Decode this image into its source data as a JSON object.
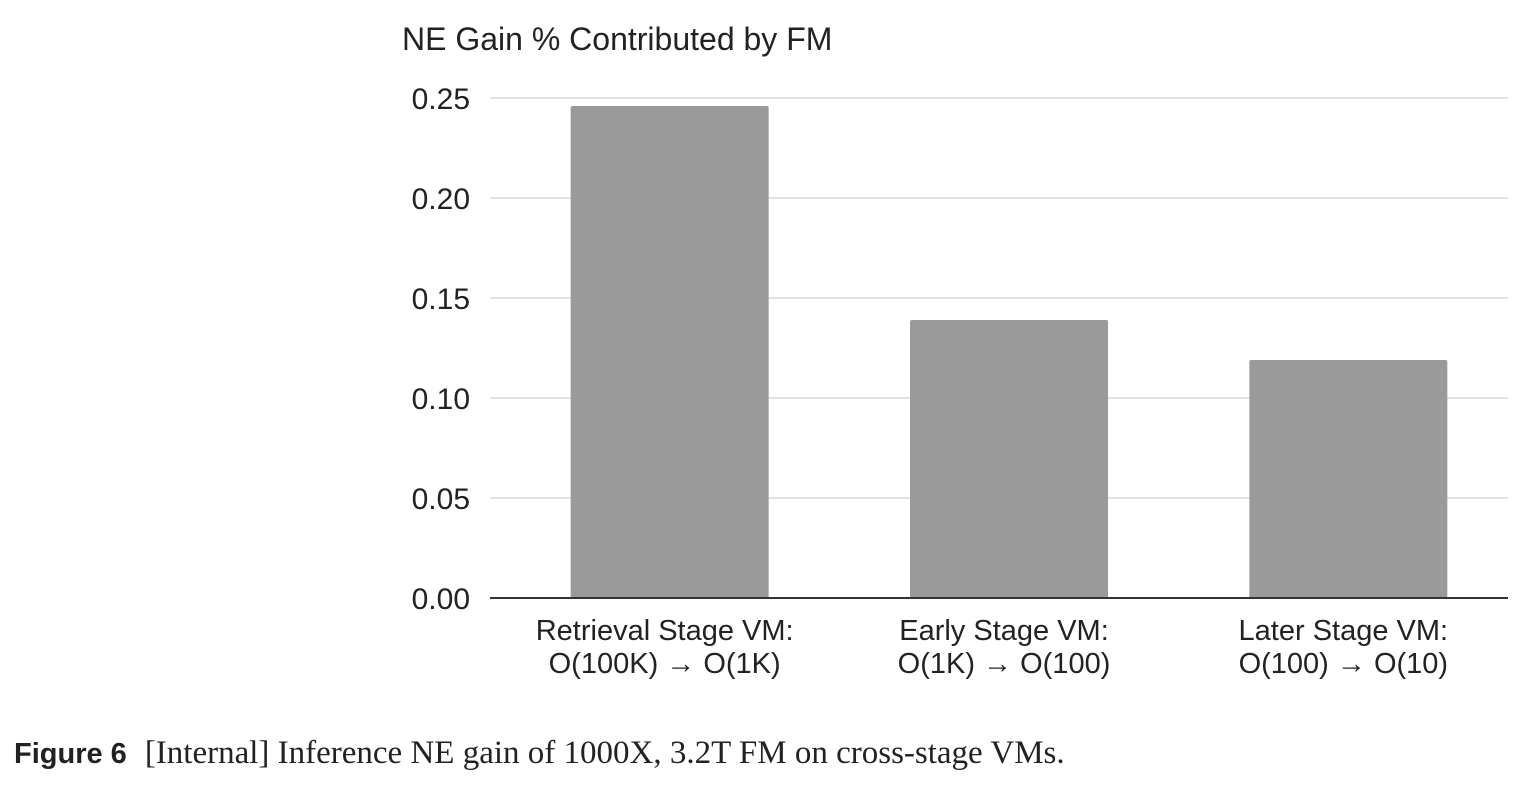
{
  "chart_data": {
    "type": "bar",
    "title": "NE Gain % Contributed by FM",
    "xlabel": "",
    "ylabel": "",
    "categories": [
      [
        "Retrieval Stage VM:",
        "O(100K) → O(1K)"
      ],
      [
        "Early Stage VM:",
        "O(1K) → O(100)"
      ],
      [
        "Later Stage VM:",
        "O(100) → O(10)"
      ]
    ],
    "values": [
      0.246,
      0.139,
      0.119
    ],
    "ylim": [
      0,
      0.25
    ],
    "yticks": [
      "0.00",
      "0.05",
      "0.10",
      "0.15",
      "0.20",
      "0.25"
    ],
    "grid": true,
    "colors": {
      "bar": "#9a9a9a",
      "grid": "#d9d9d9",
      "axis": "#333333"
    }
  },
  "caption": {
    "label": "Figure 6",
    "text": "[Internal] Inference NE gain of 1000X, 3.2T FM on cross-stage VMs."
  }
}
